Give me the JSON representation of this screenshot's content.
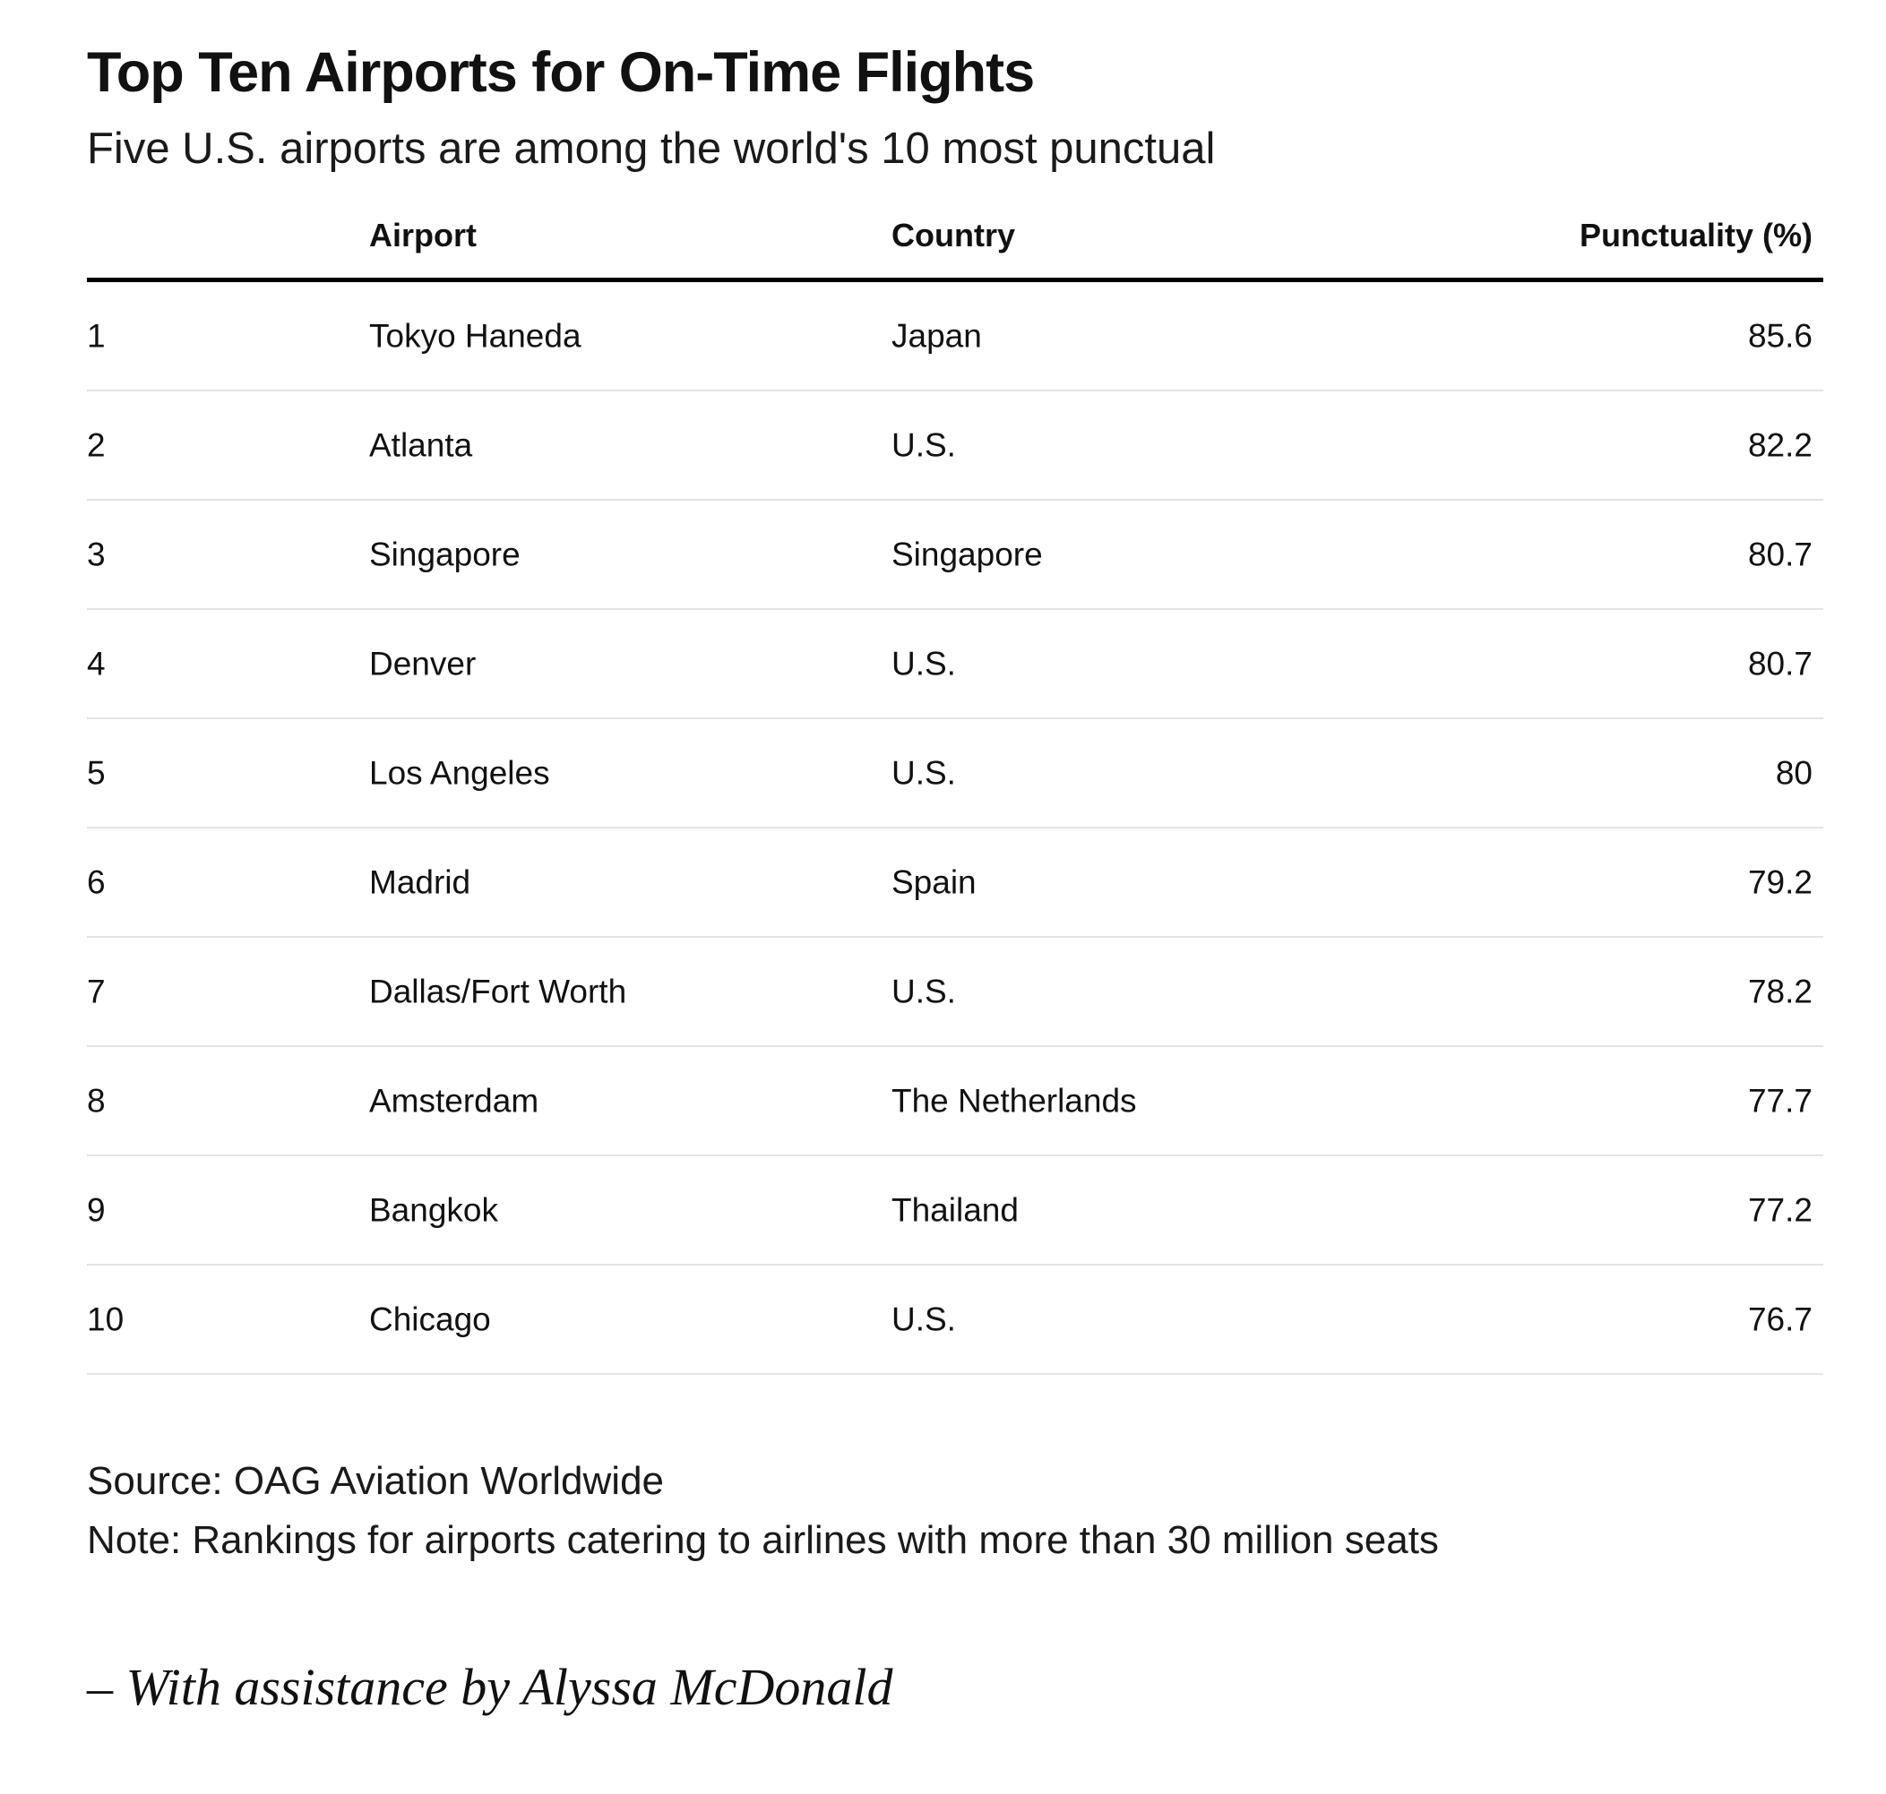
{
  "title": "Top Ten Airports for On-Time Flights",
  "subtitle": "Five U.S. airports are among the world's 10 most punctual",
  "chart_data": {
    "type": "table",
    "title": "Top Ten Airports for On-Time Flights",
    "subtitle": "Five U.S. airports are among the world's 10 most punctual",
    "columns": [
      "",
      "Airport",
      "Country",
      "Punctuality (%)"
    ],
    "rows": [
      {
        "rank": "1",
        "airport": "Tokyo Haneda",
        "country": "Japan",
        "punctuality": "85.6"
      },
      {
        "rank": "2",
        "airport": "Atlanta",
        "country": "U.S.",
        "punctuality": "82.2"
      },
      {
        "rank": "3",
        "airport": "Singapore",
        "country": "Singapore",
        "punctuality": "80.7"
      },
      {
        "rank": "4",
        "airport": "Denver",
        "country": "U.S.",
        "punctuality": "80.7"
      },
      {
        "rank": "5",
        "airport": "Los Angeles",
        "country": "U.S.",
        "punctuality": "80"
      },
      {
        "rank": "6",
        "airport": "Madrid",
        "country": "Spain",
        "punctuality": "79.2"
      },
      {
        "rank": "7",
        "airport": "Dallas/Fort Worth",
        "country": "U.S.",
        "punctuality": "78.2"
      },
      {
        "rank": "8",
        "airport": "Amsterdam",
        "country": "The Netherlands",
        "punctuality": "77.7"
      },
      {
        "rank": "9",
        "airport": "Bangkok",
        "country": "Thailand",
        "punctuality": "77.2"
      },
      {
        "rank": "10",
        "airport": "Chicago",
        "country": "U.S.",
        "punctuality": "76.7"
      }
    ]
  },
  "footer": {
    "source": "Source: OAG Aviation Worldwide",
    "note": "Note: Rankings for airports catering to airlines with more than 30 million seats"
  },
  "credit": "– With assistance by Alyssa McDonald"
}
